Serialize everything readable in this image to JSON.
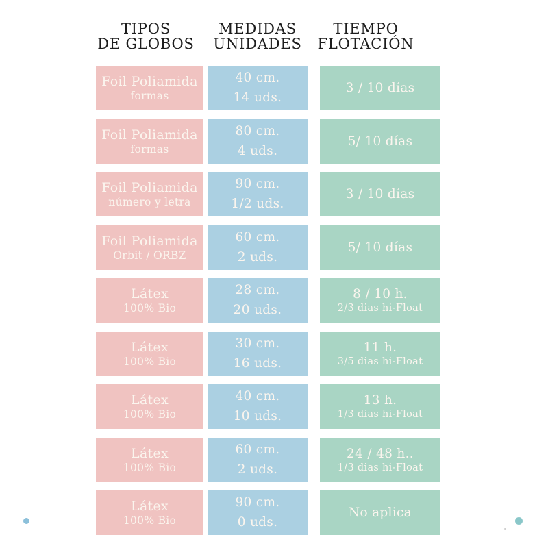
{
  "chart_data": {
    "type": "table",
    "columns": [
      {
        "field": "tipo",
        "header_line1": "TIPOS",
        "header_line2": "DE GLOBOS"
      },
      {
        "field": "medida",
        "header_line1": "MEDIDAS",
        "header_line2": "UNIDADES"
      },
      {
        "field": "tiempo",
        "header_line1": "TIEMPO",
        "header_line2": "FLOTACIÓN"
      }
    ],
    "rows": [
      {
        "tipo": {
          "line1": "Foil Poliamida",
          "line2": "formas"
        },
        "medida": {
          "line1": "40 cm.",
          "line2": "14 uds."
        },
        "tiempo": {
          "line1": "3 / 10 días"
        }
      },
      {
        "tipo": {
          "line1": "Foil Poliamida",
          "line2": "formas"
        },
        "medida": {
          "line1": "80 cm.",
          "line2": "4 uds."
        },
        "tiempo": {
          "line1": "5/ 10 días"
        }
      },
      {
        "tipo": {
          "line1": "Foil Poliamida",
          "line2": "número y letra"
        },
        "medida": {
          "line1": "90 cm.",
          "line2": "1/2 uds."
        },
        "tiempo": {
          "line1": "3 / 10 días"
        }
      },
      {
        "tipo": {
          "line1": "Foil Poliamida",
          "line2": "Orbit / ORBZ"
        },
        "medida": {
          "line1": "60 cm.",
          "line2": "2 uds."
        },
        "tiempo": {
          "line1": "5/ 10 días"
        }
      },
      {
        "tipo": {
          "line1": "Látex",
          "line2": "100% Bio"
        },
        "medida": {
          "line1": "28 cm.",
          "line2": "20 uds."
        },
        "tiempo": {
          "line1": "8 / 10 h.",
          "line2": "2/3 dias hi-Float"
        }
      },
      {
        "tipo": {
          "line1": "Látex",
          "line2": "100% Bio"
        },
        "medida": {
          "line1": "30 cm.",
          "line2": "16 uds."
        },
        "tiempo": {
          "line1": "11 h.",
          "line2": "3/5 dias hi-Float"
        }
      },
      {
        "tipo": {
          "line1": "Látex",
          "line2": "100% Bio"
        },
        "medida": {
          "line1": "40 cm.",
          "line2": "10 uds."
        },
        "tiempo": {
          "line1": "13 h.",
          "line2": "1/3 dias hi-Float"
        }
      },
      {
        "tipo": {
          "line1": "Látex",
          "line2": "100% Bio"
        },
        "medida": {
          "line1": "60 cm.",
          "line2": "2 uds."
        },
        "tiempo": {
          "line1": "24 / 48 h..",
          "line2": "1/3 dias hi-Float"
        }
      },
      {
        "tipo": {
          "line1": "Látex",
          "line2": "100% Bio"
        },
        "medida": {
          "line1": "90 cm.",
          "line2": "0 uds."
        },
        "tiempo": {
          "line1": "No aplica"
        }
      }
    ]
  },
  "colors": {
    "background": "#ffffff",
    "header_text": "#1d1d1d",
    "cell_text": "#fbf5ee",
    "tipo_cell": "#f0c3c1",
    "medida_cell": "#abd0e2",
    "tiempo_cell": "#a9d5c4",
    "dot_bottom_left": "#8cc0da",
    "dot_bottom_right": "#8ac7c9",
    "speck": "#d0d0d0"
  }
}
